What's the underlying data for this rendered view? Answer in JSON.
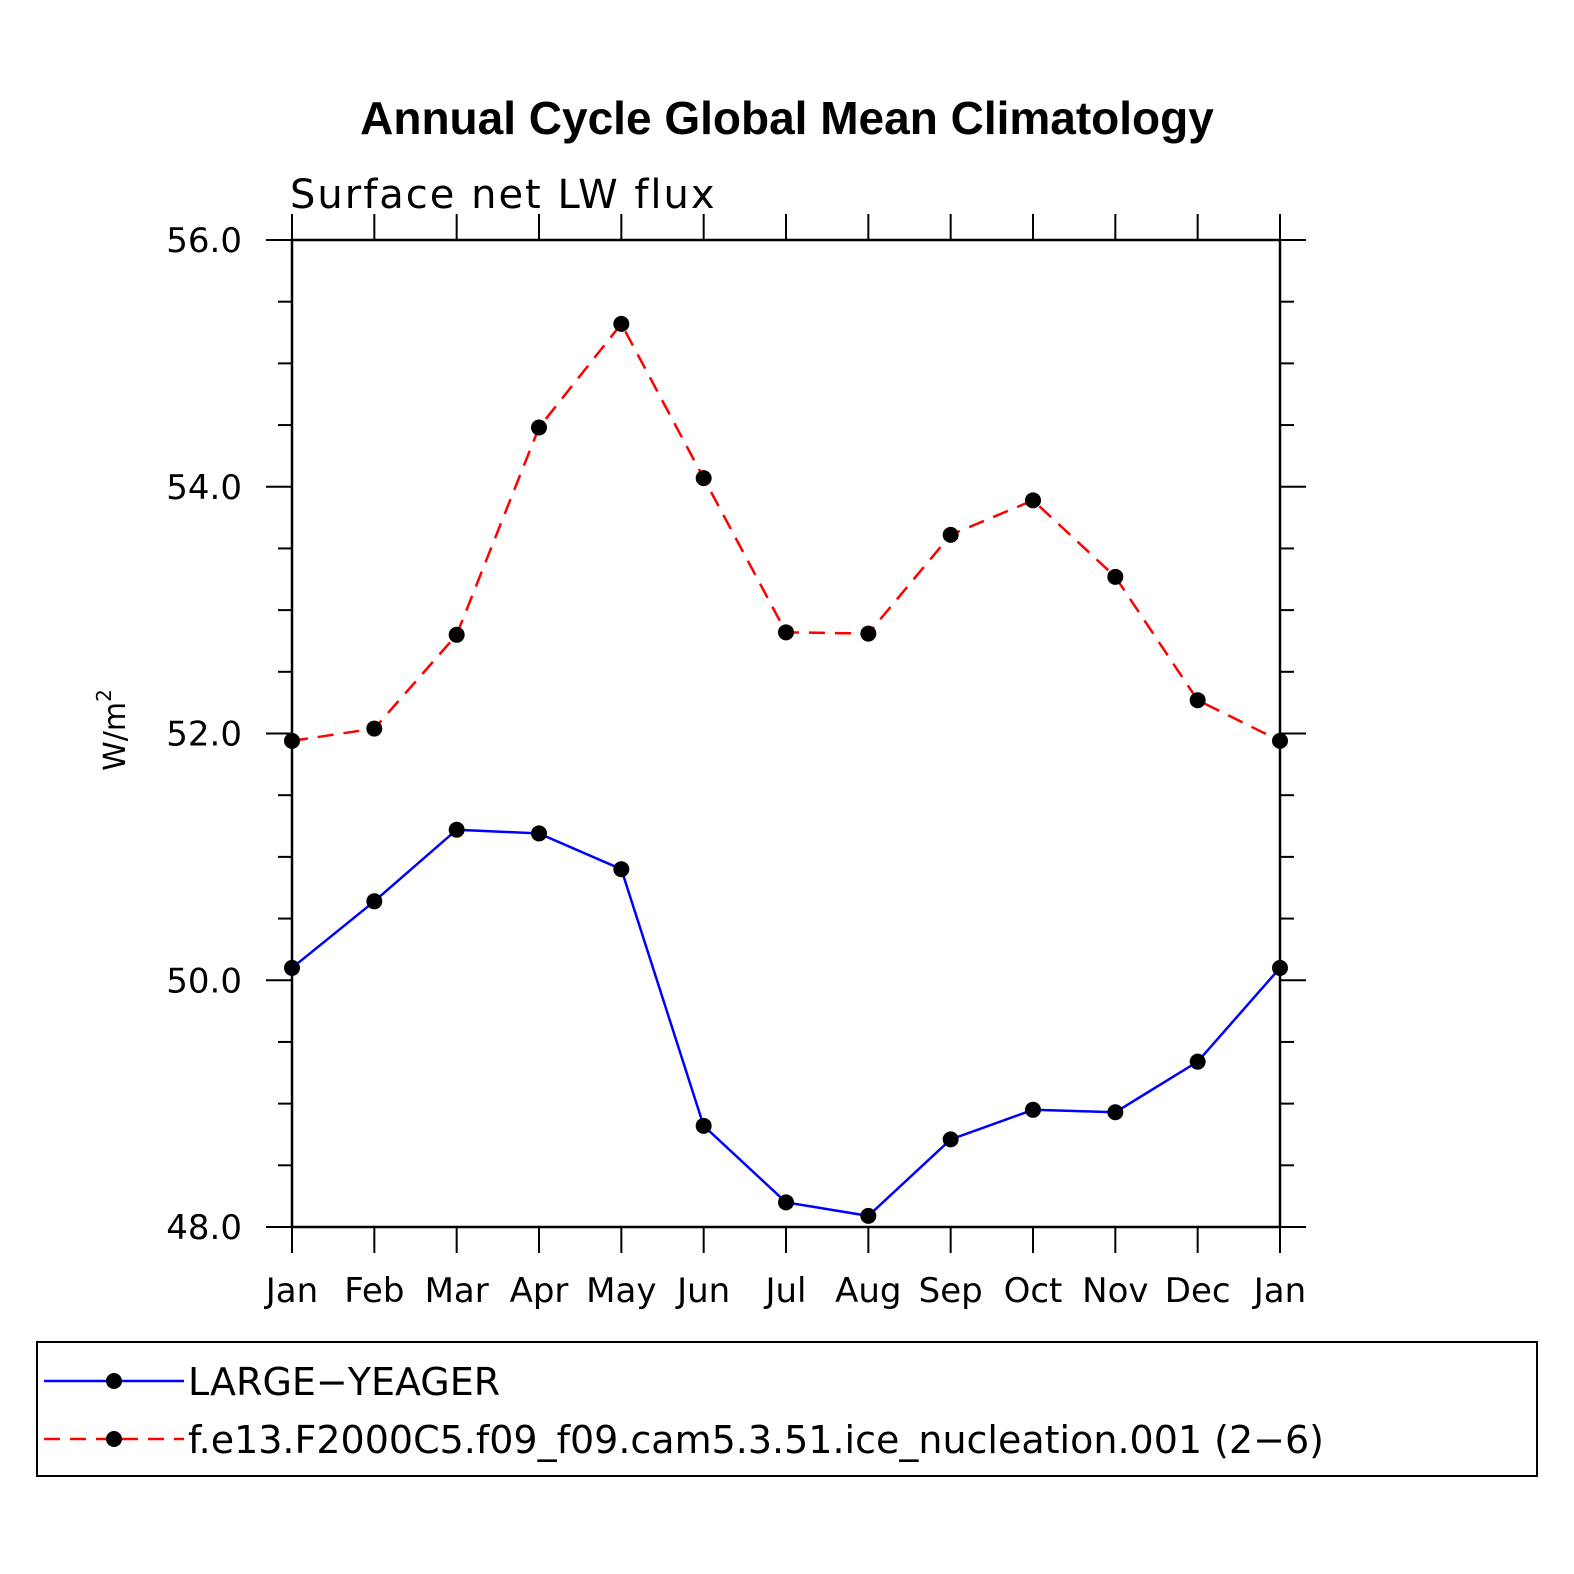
{
  "chart_data": {
    "type": "line",
    "title": "Annual Cycle Global Mean Climatology",
    "subtitle": "Surface net LW flux",
    "ylabel": "W/m",
    "ylabel_sup": "2",
    "xlabel": "",
    "ylim": [
      48.0,
      56.0
    ],
    "yticks": [
      48.0,
      50.0,
      52.0,
      54.0,
      56.0
    ],
    "ytick_labels": [
      "48.0",
      "50.0",
      "52.0",
      "54.0",
      "56.0"
    ],
    "categories": [
      "Jan",
      "Feb",
      "Mar",
      "Apr",
      "May",
      "Jun",
      "Jul",
      "Aug",
      "Sep",
      "Oct",
      "Nov",
      "Dec",
      "Jan"
    ],
    "series": [
      {
        "name": "LARGE−YEAGER",
        "color": "#0000ff",
        "dash": "solid",
        "values": [
          50.1,
          50.64,
          51.22,
          51.19,
          50.9,
          48.82,
          48.2,
          48.09,
          48.71,
          48.95,
          48.93,
          49.34,
          50.1
        ]
      },
      {
        "name": "f.e13.F2000C5.f09_f09.cam5.3.51.ice_nucleation.001 (2−6)",
        "color": "#ff0000",
        "dash": "dashed",
        "values": [
          51.94,
          52.04,
          52.8,
          54.48,
          55.32,
          54.07,
          52.82,
          52.81,
          53.61,
          53.89,
          53.27,
          52.27,
          51.94
        ]
      }
    ],
    "legend": "bottom"
  }
}
